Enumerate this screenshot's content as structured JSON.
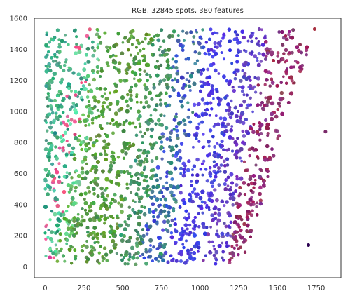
{
  "chart_data": {
    "type": "scatter",
    "title": "RGB, 32845 spots, 380 features",
    "xlabel": "",
    "ylabel": "",
    "xlim": [
      -70,
      1910
    ],
    "ylim": [
      -70,
      1600
    ],
    "x_ticks": [
      0,
      250,
      500,
      750,
      1000,
      1250,
      1500,
      1750
    ],
    "y_ticks": [
      0,
      200,
      400,
      600,
      800,
      1000,
      1200,
      1400,
      1600
    ],
    "grid": false,
    "legend": "none",
    "background": "#ffffff",
    "frame_color": "#333333",
    "tissue_region": {
      "x_range": [
        0,
        1760
      ],
      "y_range": [
        15,
        1530
      ],
      "right_edge": [
        [
          1720,
          1530
        ],
        [
          1680,
          1300
        ],
        [
          1570,
          1000
        ],
        [
          1450,
          600
        ],
        [
          1330,
          200
        ],
        [
          1265,
          15
        ]
      ]
    },
    "color_bands": [
      {
        "name": "teal-green",
        "x_from": 0,
        "x_to": 200,
        "color": "#2f9a78"
      },
      {
        "name": "mint",
        "x_from": 120,
        "x_to": 340,
        "color": "#62d9a4"
      },
      {
        "name": "pink",
        "x_from": 30,
        "x_to": 380,
        "color": "#e8508a"
      },
      {
        "name": "green",
        "x_from": 300,
        "x_to": 800,
        "color": "#5c9e2e"
      },
      {
        "name": "teal",
        "x_from": 650,
        "x_to": 1180,
        "color": "#3b8f72"
      },
      {
        "name": "blue",
        "x_from": 720,
        "x_to": 1470,
        "color": "#3c3ce6"
      },
      {
        "name": "purple",
        "x_from": 1250,
        "x_to": 1640,
        "color": "#7a3db0"
      },
      {
        "name": "maroon",
        "x_from": 1320,
        "x_to": 1730,
        "color": "#9b2650"
      }
    ],
    "outliers": [
      {
        "x": 1700,
        "y": 140,
        "color": "#2a0050"
      },
      {
        "x": 1810,
        "y": 870,
        "color": "#7a2a6a"
      },
      {
        "x": 1740,
        "y": 1530,
        "color": "#a83040"
      }
    ]
  }
}
